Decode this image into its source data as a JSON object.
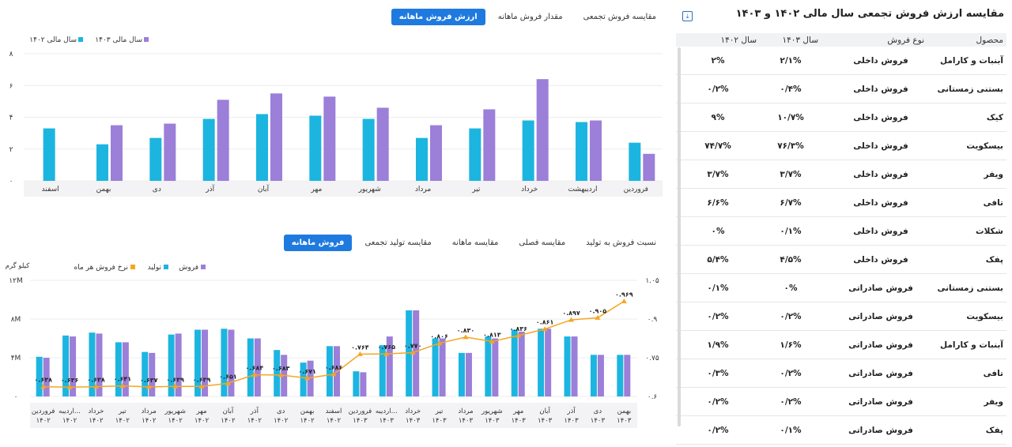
{
  "table": {
    "title": "مقایسه ارزش فروش تجمعی سال مالی ۱۴۰۲ و ۱۴۰۳",
    "columns": [
      "محصول",
      "نوع فروش",
      "سال ۱۴۰۳",
      "سال ۱۴۰۲"
    ],
    "rows": [
      {
        "product": "آبنبات و کارامل",
        "type": "فروش داخلی",
        "y1403": "۲/۱%",
        "y1402": "۲%"
      },
      {
        "product": "بستنی زمستانی",
        "type": "فروش داخلی",
        "y1403": "۰/۴%",
        "y1402": "۰/۲%"
      },
      {
        "product": "کیک",
        "type": "فروش داخلی",
        "y1403": "۱۰/۷%",
        "y1402": "۹%"
      },
      {
        "product": "بیسکویت",
        "type": "فروش داخلی",
        "y1403": "۷۶/۳%",
        "y1402": "۷۴/۷%"
      },
      {
        "product": "ویفر",
        "type": "فروش داخلی",
        "y1403": "۳/۷%",
        "y1402": "۳/۷%"
      },
      {
        "product": "تافی",
        "type": "فروش داخلی",
        "y1403": "۶/۷%",
        "y1402": "۶/۶%"
      },
      {
        "product": "شکلات",
        "type": "فروش داخلی",
        "y1403": "۰/۱%",
        "y1402": "۰%"
      },
      {
        "product": "پفک",
        "type": "فروش داخلی",
        "y1403": "۴/۵%",
        "y1402": "۵/۴%"
      },
      {
        "product": "بستنی زمستانی",
        "type": "فروش صادراتی",
        "y1403": "۰%",
        "y1402": "۰/۱%"
      },
      {
        "product": "بیسکویت",
        "type": "فروش صادراتی",
        "y1403": "۰/۲%",
        "y1402": "۰/۲%"
      },
      {
        "product": "آبنبات و کارامل",
        "type": "فروش صادراتی",
        "y1403": "۱/۶%",
        "y1402": "۱/۹%"
      },
      {
        "product": "تافی",
        "type": "فروش صادراتی",
        "y1403": "۰/۲%",
        "y1402": "۰/۳%"
      },
      {
        "product": "ویفر",
        "type": "فروش صادراتی",
        "y1403": "۰/۲%",
        "y1402": "۰/۲%"
      },
      {
        "product": "پفک",
        "type": "فروش صادراتی",
        "y1403": "۰/۱%",
        "y1402": "۰/۲%"
      }
    ]
  },
  "tabs_top": [
    {
      "label": "ارزش فروش ماهانه",
      "active": true
    },
    {
      "label": "مقدار فروش ماهانه",
      "active": false
    },
    {
      "label": "مقایسه فروش تجمعی",
      "active": false
    }
  ],
  "tabs_bottom": [
    {
      "label": "فروش ماهانه",
      "active": true
    },
    {
      "label": "مقایسه تولید تجمعی",
      "active": false
    },
    {
      "label": "مقایسه ماهانه",
      "active": false
    },
    {
      "label": "مقایسه فصلی",
      "active": false
    },
    {
      "label": "نسبت فروش به تولید",
      "active": false
    }
  ],
  "chart_data": [
    {
      "type": "bar",
      "legend_position": "top-left",
      "ylim": [
        0,
        8
      ],
      "yticks": [
        "۰",
        "۲",
        "۴",
        "۶",
        "۸"
      ],
      "yticks_values": [
        0,
        2,
        4,
        6,
        8
      ],
      "grid": true,
      "categories": [
        "فروردین",
        "اردیبهشت",
        "خرداد",
        "تیر",
        "مرداد",
        "شهریور",
        "مهر",
        "آبان",
        "آذر",
        "دی",
        "بهمن",
        "اسفند"
      ],
      "series": [
        {
          "name": "سال مالی ۱۴۰۲",
          "color": "#1cb5e0",
          "values": [
            2.4,
            3.7,
            3.8,
            3.3,
            2.7,
            3.9,
            4.1,
            4.2,
            3.9,
            2.7,
            2.3,
            3.3
          ]
        },
        {
          "name": "سال مالی ۱۴۰۳",
          "color": "#9b7fd8",
          "values": [
            1.7,
            3.8,
            6.4,
            4.5,
            3.5,
            4.6,
            5.3,
            5.5,
            5.1,
            3.6,
            3.5,
            null
          ]
        }
      ]
    },
    {
      "type": "bar",
      "legend_position": "top-left",
      "ylabel": "کیلو گرم",
      "ylim": [
        0,
        12
      ],
      "yticks": [
        "۰",
        "۴M",
        "۸M",
        "۱۲M"
      ],
      "yticks_values": [
        0,
        4,
        8,
        12
      ],
      "y2lim": [
        0.6,
        1.05
      ],
      "y2ticks": [
        "۰.۶",
        "۰.۷۵",
        "۰.۹",
        "۱.۰۵"
      ],
      "y2ticks_values": [
        0.6,
        0.75,
        0.9,
        1.05
      ],
      "grid": true,
      "categories": [
        [
          "فروردین",
          "۱۴۰۲"
        ],
        [
          "اردیبه...",
          "۱۴۰۲"
        ],
        [
          "خرداد",
          "۱۴۰۲"
        ],
        [
          "تیر",
          "۱۴۰۲"
        ],
        [
          "مرداد",
          "۱۴۰۲"
        ],
        [
          "شهریور",
          "۱۴۰۲"
        ],
        [
          "مهر",
          "۱۴۰۲"
        ],
        [
          "آبان",
          "۱۴۰۲"
        ],
        [
          "آذر",
          "۱۴۰۲"
        ],
        [
          "دی",
          "۱۴۰۲"
        ],
        [
          "بهمن",
          "۱۴۰۲"
        ],
        [
          "اسفند",
          "۱۴۰۲"
        ],
        [
          "فروردین",
          "۱۴۰۳"
        ],
        [
          "اردیبه...",
          "۱۴۰۳"
        ],
        [
          "خرداد",
          "۱۴۰۳"
        ],
        [
          "تیر",
          "۱۴۰۳"
        ],
        [
          "مرداد",
          "۱۴۰۳"
        ],
        [
          "شهریور",
          "۱۴۰۳"
        ],
        [
          "مهر",
          "۱۴۰۳"
        ],
        [
          "آبان",
          "۱۴۰۳"
        ],
        [
          "آذر",
          "۱۴۰۳"
        ],
        [
          "دی",
          "۱۴۰۳"
        ],
        [
          "بهمن",
          "۱۴۰۳"
        ]
      ],
      "series": [
        {
          "name": "فروش",
          "color": "#9b7fd8",
          "values": [
            4.0,
            6.2,
            6.5,
            5.6,
            4.5,
            6.5,
            6.9,
            6.9,
            6.0,
            4.3,
            3.7,
            5.2,
            2.5,
            6.2,
            8.9,
            6.0,
            4.5,
            6.0,
            6.7,
            7.0,
            6.2,
            4.3,
            4.3
          ]
        },
        {
          "name": "تولید",
          "color": "#1cb5e0",
          "values": [
            4.1,
            6.3,
            6.6,
            5.6,
            4.6,
            6.4,
            6.9,
            7.0,
            6.0,
            4.8,
            3.5,
            5.2,
            2.6,
            5.3,
            8.9,
            6.0,
            4.5,
            6.2,
            6.9,
            7.0,
            6.2,
            4.3,
            4.3
          ]
        },
        {
          "name": "نرخ فروش هر ماه",
          "color": "#f5a623",
          "type": "line",
          "axis": "right",
          "values": [
            0.638,
            0.636,
            0.638,
            0.641,
            0.637,
            0.639,
            0.639,
            0.651,
            0.684,
            0.683,
            0.671,
            0.686,
            0.764,
            0.765,
            0.77,
            0.806,
            0.83,
            0.813,
            0.836,
            0.861,
            0.897,
            0.905,
            0.969
          ],
          "labels": [
            "۰.۶۳۸",
            "۰.۶۳۶",
            "۰.۶۳۸",
            "۰.۶۴۱",
            "۰.۶۳۷",
            "۰.۶۳۹",
            "۰.۶۳۹",
            "۰.۶۵۱",
            "۰.۶۸۴",
            "۰.۶۸۳",
            "۰.۶۷۱",
            "۰.۶۸۶",
            "۰.۷۶۴",
            "۰.۷۶۵",
            "۰.۷۷۰",
            "۰.۸۰۶",
            "۰.۸۳۰",
            "۰.۸۱۳",
            "۰.۸۳۶",
            "۰.۸۶۱",
            "۰.۸۹۷",
            "۰.۹۰۵",
            "۰.۹۶۹"
          ]
        }
      ]
    }
  ]
}
